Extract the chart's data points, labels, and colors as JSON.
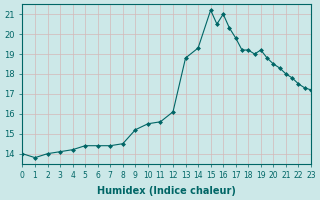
{
  "x": [
    0,
    1,
    2,
    3,
    4,
    5,
    6,
    7,
    8,
    9,
    10,
    11,
    12,
    13,
    14,
    15,
    15.5,
    16,
    16.5,
    17,
    17.5,
    18,
    18.5,
    19,
    19.5,
    20,
    20.5,
    21,
    21.5,
    22,
    22.5,
    23
  ],
  "y": [
    14.0,
    13.8,
    14.0,
    14.1,
    14.2,
    14.4,
    14.4,
    14.4,
    14.5,
    15.2,
    15.5,
    15.6,
    16.1,
    18.8,
    19.3,
    21.2,
    20.5,
    21.0,
    20.3,
    19.8,
    19.2,
    19.2,
    19.0,
    19.2,
    18.8,
    18.5,
    18.3,
    18.0,
    17.8,
    17.5,
    17.3,
    17.2
  ],
  "line_color": "#006666",
  "marker_color": "#006666",
  "bg_color": "#cce8e8",
  "grid_color": "#d4b8b8",
  "axis_color": "#006666",
  "xlabel": "Humidex (Indice chaleur)",
  "xlim": [
    0,
    23
  ],
  "ylim": [
    13.5,
    21.5
  ],
  "yticks": [
    14,
    15,
    16,
    17,
    18,
    19,
    20,
    21
  ],
  "xticks": [
    0,
    1,
    2,
    3,
    4,
    5,
    6,
    7,
    8,
    9,
    10,
    11,
    12,
    13,
    14,
    15,
    16,
    17,
    18,
    19,
    20,
    21,
    22,
    23
  ],
  "xtick_labels": [
    "0",
    "1",
    "2",
    "3",
    "4",
    "5",
    "6",
    "7",
    "8",
    "9",
    "10",
    "11",
    "12",
    "13",
    "14",
    "15",
    "16",
    "17",
    "18",
    "19",
    "20",
    "21",
    "22",
    "23"
  ]
}
